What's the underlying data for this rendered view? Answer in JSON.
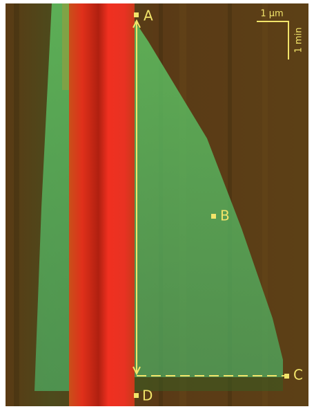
{
  "labels": {
    "a": "A",
    "b": "B",
    "c": "C",
    "d": "D"
  },
  "scale_bar": {
    "length": "1 µm",
    "time": "1 min"
  }
}
